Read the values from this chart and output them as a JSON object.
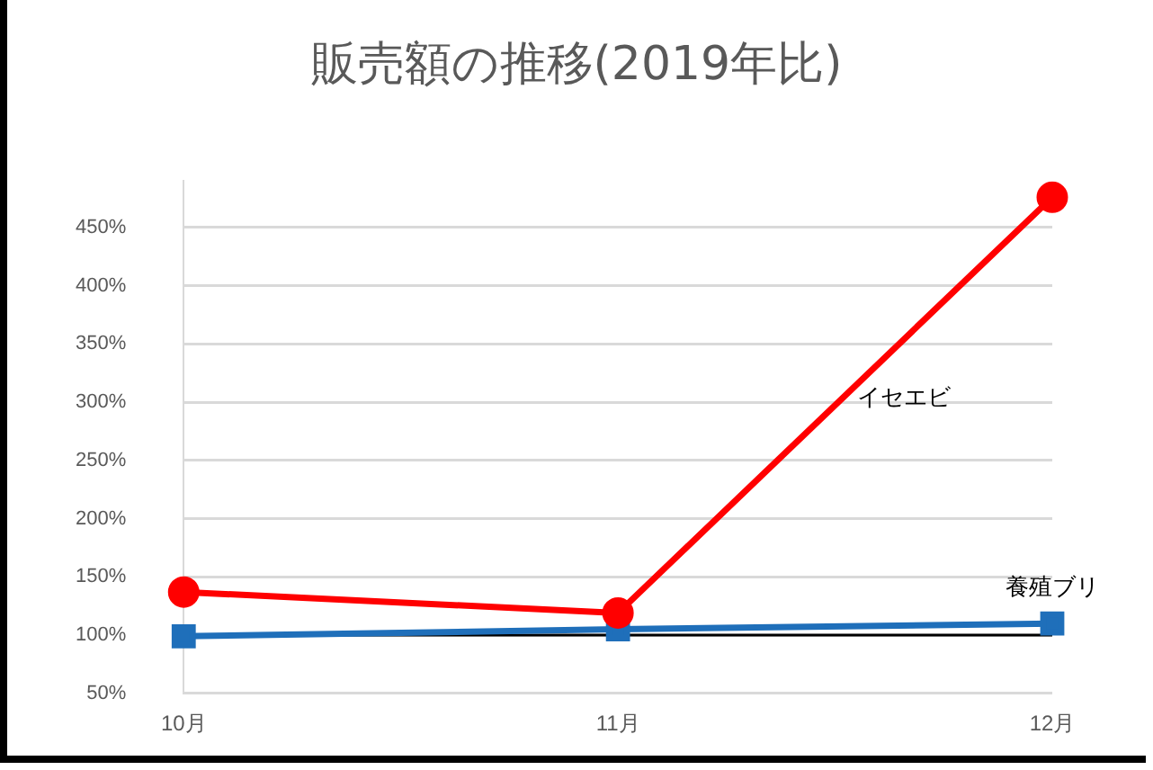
{
  "chart_data": {
    "type": "line",
    "title": "販売額の推移(2019年比)",
    "categories": [
      "10月",
      "11月",
      "12月"
    ],
    "series": [
      {
        "name": "イセエビ",
        "color": "#ff0000",
        "values": [
          137,
          119,
          476
        ],
        "marker": "circle"
      },
      {
        "name": "養殖ブリ",
        "color": "#1f6fba",
        "values": [
          99,
          105,
          110
        ],
        "marker": "square"
      }
    ],
    "ylim": [
      50,
      490
    ],
    "yticks": [
      {
        "value": 50,
        "label": "50%"
      },
      {
        "value": 100,
        "label": "100%"
      },
      {
        "value": 150,
        "label": "150%"
      },
      {
        "value": 200,
        "label": "200%"
      },
      {
        "value": 250,
        "label": "250%"
      },
      {
        "value": 300,
        "label": "300%"
      },
      {
        "value": 350,
        "label": "350%"
      },
      {
        "value": 400,
        "label": "400%"
      },
      {
        "value": 450,
        "label": "450%"
      }
    ],
    "grid": "y",
    "legend": false,
    "ref_lines": [
      {
        "axis": "y",
        "value": 100,
        "label": null,
        "color": "#000000"
      }
    ]
  }
}
